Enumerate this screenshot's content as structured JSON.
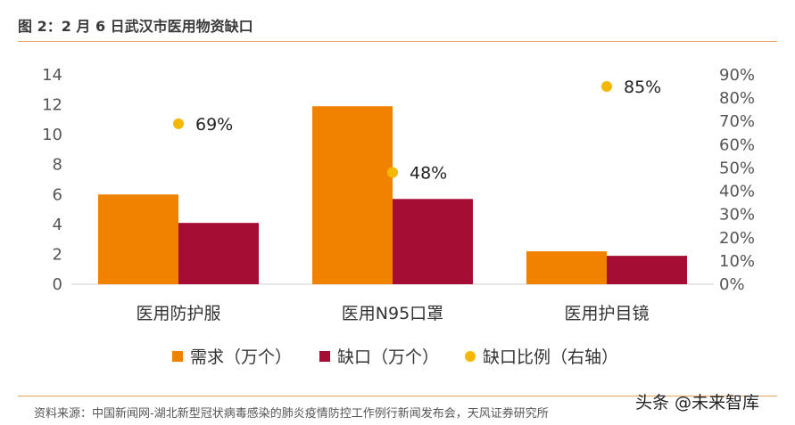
{
  "title": "图 2：2 月 6 日武汉市医用物资缺口",
  "source": "资料来源：中国新闻网-湖北新型冠状病毒感染的肺炎疫情防控工作例行新闻发布会，天风证券研究所",
  "watermark": "头条 @未来智库",
  "colors": {
    "demand": "#f08200",
    "gap": "#a50d34",
    "ratio": "#f5b800",
    "rule": "#e9a25a"
  },
  "chart_data": {
    "type": "bar",
    "categories": [
      "医用防护服",
      "医用N95口罩",
      "医用护目镜"
    ],
    "series": [
      {
        "name": "需求（万个）",
        "values": [
          6,
          11.9,
          2.2
        ],
        "axis": "left",
        "kind": "bar"
      },
      {
        "name": "缺口（万个）",
        "values": [
          4.1,
          5.7,
          1.9
        ],
        "axis": "left",
        "kind": "bar"
      },
      {
        "name": "缺口比例（右轴）",
        "values": [
          0.69,
          0.48,
          0.85
        ],
        "axis": "right",
        "kind": "scatter",
        "labels": [
          "69%",
          "48%",
          "85%"
        ]
      }
    ],
    "ylim": [
      0,
      14
    ],
    "yticks": [
      "0",
      "2",
      "4",
      "6",
      "8",
      "10",
      "12",
      "14"
    ],
    "y2lim": [
      0,
      0.9
    ],
    "y2ticks": [
      "0%",
      "10%",
      "20%",
      "30%",
      "40%",
      "50%",
      "60%",
      "70%",
      "80%",
      "90%"
    ],
    "grid": false,
    "legend": "bottom"
  }
}
